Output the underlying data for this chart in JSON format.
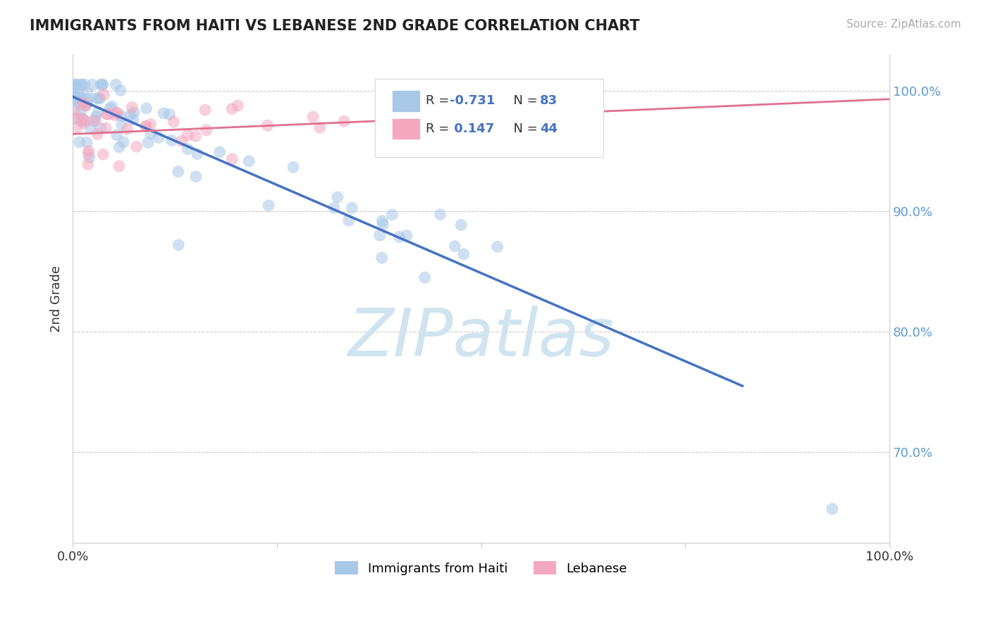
{
  "title": "IMMIGRANTS FROM HAITI VS LEBANESE 2ND GRADE CORRELATION CHART",
  "source_text": "Source: ZipAtlas.com",
  "ylabel": "2nd Grade",
  "legend_haiti": "Immigrants from Haiti",
  "legend_lebanese": "Lebanese",
  "r_haiti": -0.731,
  "n_haiti": 83,
  "r_lebanese": 0.147,
  "n_lebanese": 44,
  "haiti_color": "#a8c8e8",
  "lebanese_color": "#f4a8c0",
  "haiti_line_color": "#4472c4",
  "lebanese_line_color": "#e07090",
  "tick_color": "#5b9bd5",
  "background_color": "#ffffff",
  "watermark_color": "#d0e4f0",
  "xlim": [
    0.0,
    1.0
  ],
  "ylim": [
    0.625,
    1.03
  ],
  "ytick_values": [
    1.0,
    0.9,
    0.8,
    0.7
  ],
  "ytick_labels": [
    "100.0%",
    "90.0%",
    "80.0%",
    "70.0%"
  ],
  "haiti_line_x0": 0.0,
  "haiti_line_y0": 0.995,
  "haiti_line_x1": 0.82,
  "haiti_line_y1": 0.755,
  "leb_line_x0": 0.0,
  "leb_line_y0": 0.964,
  "leb_line_x1": 1.0,
  "leb_line_y1": 0.993
}
